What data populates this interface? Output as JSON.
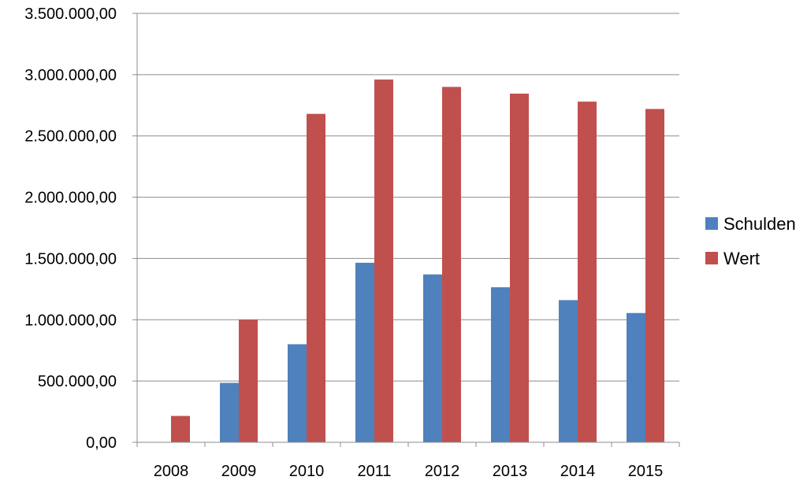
{
  "chart_data": {
    "type": "bar",
    "categories": [
      "2008",
      "2009",
      "2010",
      "2011",
      "2012",
      "2013",
      "2014",
      "2015"
    ],
    "series": [
      {
        "name": "Schulden",
        "color": "#4F81BD",
        "values": [
          0,
          485000,
          800000,
          1465000,
          1370000,
          1265000,
          1160000,
          1055000
        ]
      },
      {
        "name": "Wert",
        "color": "#C0504D",
        "values": [
          215000,
          1000000,
          2680000,
          2960000,
          2900000,
          2845000,
          2780000,
          2720000
        ]
      }
    ],
    "y_ticks": [
      0,
      500000,
      1000000,
      1500000,
      2000000,
      2500000,
      3000000,
      3500000
    ],
    "y_tick_labels": [
      "0,00",
      "500.000,00",
      "1.000.000,00",
      "1.500.000,00",
      "2.000.000,00",
      "2.500.000,00",
      "3.000.000,00",
      "3.500.000,00"
    ],
    "ylim": [
      0,
      3500000
    ],
    "grid": true,
    "legend_position": "right",
    "title": "",
    "xlabel": "",
    "ylabel": ""
  }
}
